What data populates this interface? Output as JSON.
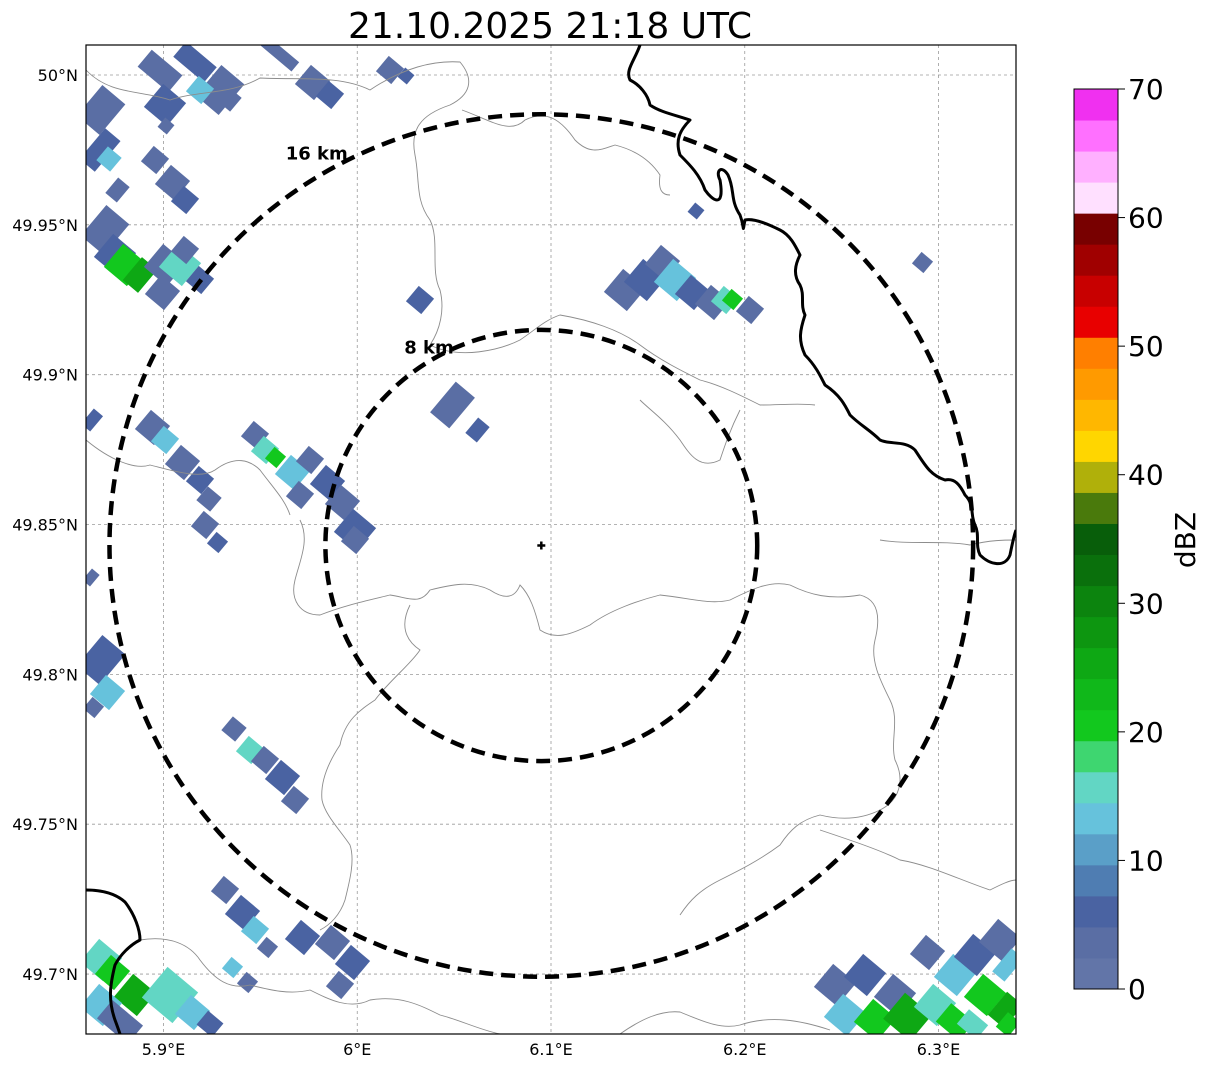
{
  "title": "21.10.2025 21:18 UTC",
  "map": {
    "lat_labels": [
      "50°N",
      "49.95°N",
      "49.9°N",
      "49.85°N",
      "49.8°N",
      "49.75°N",
      "49.7°N"
    ],
    "lon_labels": [
      "5.9°E",
      "6°E",
      "6.1°E",
      "6.2°E",
      "6.3°E"
    ],
    "lat_values": [
      50.0,
      49.95,
      49.9,
      49.85,
      49.8,
      49.75,
      49.7
    ],
    "lon_values": [
      5.9,
      6.0,
      6.1,
      6.2,
      6.3
    ],
    "extent": {
      "lon_min": 5.86,
      "lon_max": 6.34,
      "lat_min": 49.68,
      "lat_max": 50.01
    },
    "radar_site": {
      "lon": 6.095,
      "lat": 49.843
    },
    "range_rings": [
      {
        "label": "8 km",
        "radius_km": 8
      },
      {
        "label": "16 km",
        "radius_km": 16
      }
    ],
    "grid": true
  },
  "colorbar": {
    "label": "dBZ",
    "tick_labels": [
      "0",
      "10",
      "20",
      "30",
      "40",
      "50",
      "60",
      "70"
    ],
    "min": 0,
    "max": 70,
    "step": 2.5,
    "colors": [
      "#6275a8",
      "#5a6ea4",
      "#4a63a2",
      "#4f7db2",
      "#5a9fc8",
      "#66c2dc",
      "#62d6c4",
      "#3ed670",
      "#12c81e",
      "#10b81a",
      "#0ea814",
      "#0d9610",
      "#0c840e",
      "#0a700c",
      "#085e0a",
      "#4a7a0c",
      "#b0b00a",
      "#ffd600",
      "#ffb700",
      "#ff9a00",
      "#ff7f00",
      "#e80000",
      "#c80000",
      "#a00000",
      "#780000",
      "#ffe0ff",
      "#ffb0ff",
      "#ff70ff",
      "#f030f0"
    ]
  },
  "echo_colors": {
    "weak": "#5a6ea4",
    "mid": "#4a63a2",
    "cyan": "#66c2dc",
    "teal": "#62d6c4",
    "green": "#12c81e",
    "dgreen": "#0ea814"
  }
}
